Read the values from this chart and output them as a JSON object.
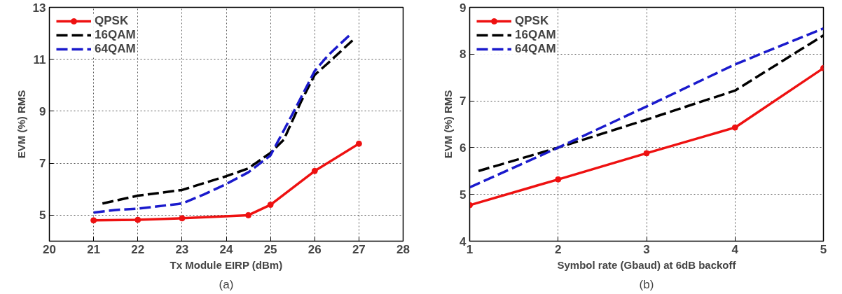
{
  "chart_data": [
    {
      "type": "line",
      "xlabel": "Tx Module EIRP (dBm)",
      "ylabel": "EVM (%) RMS",
      "annotations": [
        "(a)"
      ],
      "xlim": [
        20,
        28
      ],
      "xticks": [
        20,
        21,
        22,
        23,
        24,
        25,
        26,
        27,
        28
      ],
      "ylim": [
        4,
        13
      ],
      "yticks": [
        5,
        7,
        9,
        11,
        13
      ],
      "grid": true,
      "legend": "top left",
      "series": [
        {
          "name": "QPSK",
          "color": "#ee1111",
          "marker": "circle",
          "line_style": "solid",
          "x": [
            21,
            22,
            23,
            24.5,
            25,
            26,
            27
          ],
          "values": [
            4.8,
            4.82,
            4.88,
            5.0,
            5.4,
            6.7,
            7.75
          ]
        },
        {
          "name": "16QAM",
          "color": "#000000",
          "marker": "none",
          "line_style": "dashed",
          "x": [
            21.2,
            22,
            23,
            24,
            24.5,
            25,
            25.3,
            25.7,
            26,
            26.3,
            26.9
          ],
          "values": [
            5.45,
            5.75,
            5.97,
            6.5,
            6.8,
            7.4,
            7.9,
            9.4,
            10.4,
            10.85,
            11.8
          ]
        },
        {
          "name": "64QAM",
          "color": "#1a1acc",
          "marker": "none",
          "line_style": "dashed",
          "x": [
            21,
            21.5,
            22,
            23,
            23.5,
            24,
            24.5,
            25,
            25.5,
            26,
            26.3,
            26.8
          ],
          "values": [
            5.1,
            5.2,
            5.25,
            5.45,
            5.8,
            6.2,
            6.65,
            7.3,
            8.9,
            10.55,
            11.15,
            11.95
          ]
        }
      ]
    },
    {
      "type": "line",
      "xlabel": "Symbol rate (Gbaud) at 6dB backoff",
      "ylabel": "EVM (%) RMS",
      "annotations": [
        "(b)"
      ],
      "xlim": [
        1,
        5
      ],
      "xticks": [
        1,
        2,
        3,
        4,
        5
      ],
      "ylim": [
        4,
        9
      ],
      "yticks": [
        4,
        5,
        6,
        7,
        8,
        9
      ],
      "grid": true,
      "legend": "top left",
      "series": [
        {
          "name": "QPSK",
          "color": "#ee1111",
          "marker": "circle",
          "line_style": "solid",
          "x": [
            1,
            2,
            3,
            4,
            5
          ],
          "values": [
            4.77,
            5.32,
            5.88,
            6.43,
            7.7
          ]
        },
        {
          "name": "16QAM",
          "color": "#000000",
          "marker": "none",
          "line_style": "dashed",
          "x": [
            1.1,
            2,
            3,
            4,
            5
          ],
          "values": [
            5.5,
            6.0,
            6.6,
            7.22,
            8.4
          ]
        },
        {
          "name": "64QAM",
          "color": "#1a1acc",
          "marker": "none",
          "line_style": "dashed",
          "x": [
            1,
            2,
            3,
            4,
            5
          ],
          "values": [
            5.15,
            6.0,
            6.88,
            7.78,
            8.55
          ]
        }
      ]
    }
  ]
}
